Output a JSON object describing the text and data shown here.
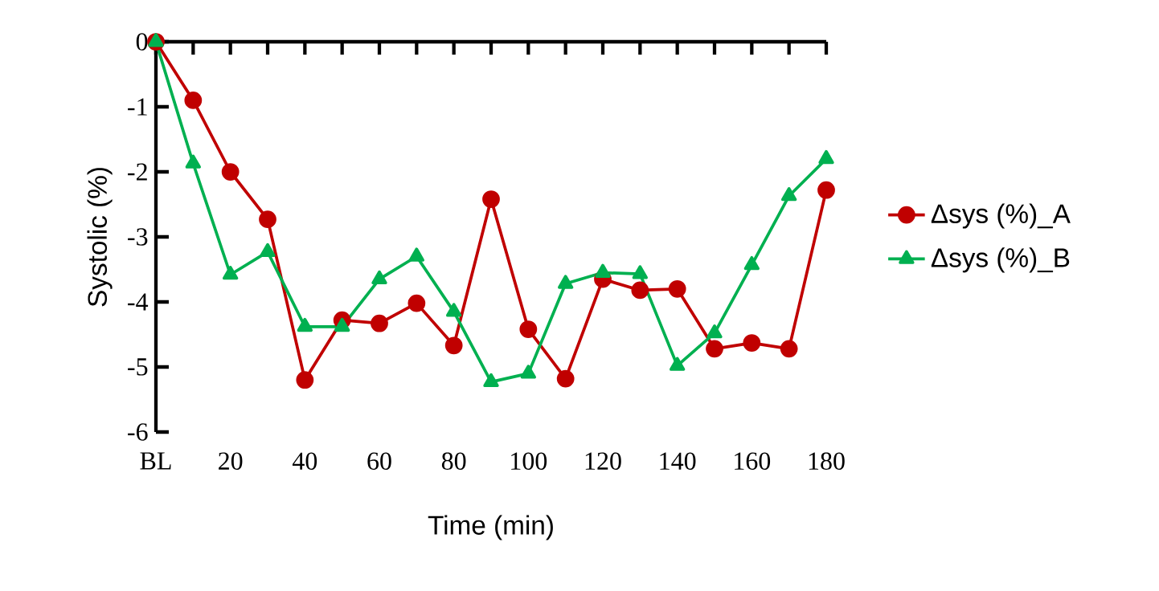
{
  "chart_data": {
    "type": "line",
    "xlabel": "Time (min)",
    "ylabel": "Systolic (%)",
    "categories": [
      "BL",
      null,
      "20",
      null,
      "40",
      null,
      "60",
      null,
      "80",
      null,
      "100",
      null,
      "120",
      null,
      "140",
      null,
      "160",
      null,
      "180"
    ],
    "series": [
      {
        "name": "Δsys (%)_A",
        "color": "#c00000",
        "marker": "circle",
        "values": [
          0,
          -0.9,
          -2.0,
          -2.73,
          -5.2,
          -4.28,
          -4.33,
          -4.02,
          -4.67,
          -2.42,
          -4.42,
          -5.18,
          -3.65,
          -3.82,
          -3.8,
          -4.72,
          -4.63,
          -4.72,
          -2.28
        ]
      },
      {
        "name": "Δsys (%)_B",
        "color": "#00b050",
        "marker": "triangle",
        "values": [
          0,
          -1.87,
          -3.58,
          -3.23,
          -4.38,
          -4.38,
          -3.65,
          -3.3,
          -4.15,
          -5.23,
          -5.1,
          -3.72,
          -3.55,
          -3.57,
          -4.98,
          -4.48,
          -3.43,
          -2.37,
          -1.8
        ]
      }
    ],
    "ylim": [
      -6,
      0
    ],
    "yticks": [
      -6,
      -5,
      -4,
      -3,
      -2,
      -1,
      0
    ],
    "legend": "right"
  }
}
